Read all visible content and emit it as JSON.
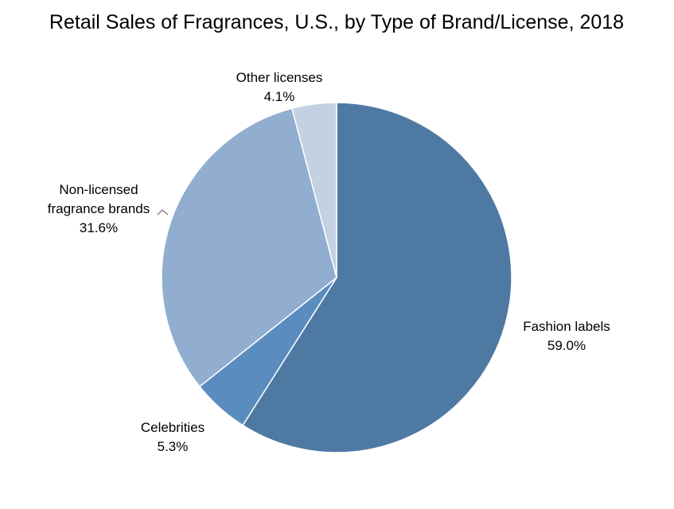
{
  "chart_data": {
    "type": "pie",
    "title": "Retail Sales of Fragrances, U.S., by Type of Brand/License, 2018",
    "slices": [
      {
        "label": "Fashion labels",
        "value": 59.0,
        "value_label": "59.0%",
        "color": "#4e79a3"
      },
      {
        "label": "Celebrities",
        "value": 5.3,
        "value_label": "5.3%",
        "color": "#5b8cbf"
      },
      {
        "label": "Non-licensed fragrance brands",
        "label_lines": [
          "Non-licensed",
          "fragrance brands"
        ],
        "value": 31.6,
        "value_label": "31.6%",
        "color": "#91adcf"
      },
      {
        "label": "Other licenses",
        "value": 4.1,
        "value_label": "4.1%",
        "color": "#c3d1e3"
      }
    ],
    "start_angle": "12 o'clock",
    "direction": "clockwise",
    "legend": "none",
    "data_labels": "outside"
  }
}
